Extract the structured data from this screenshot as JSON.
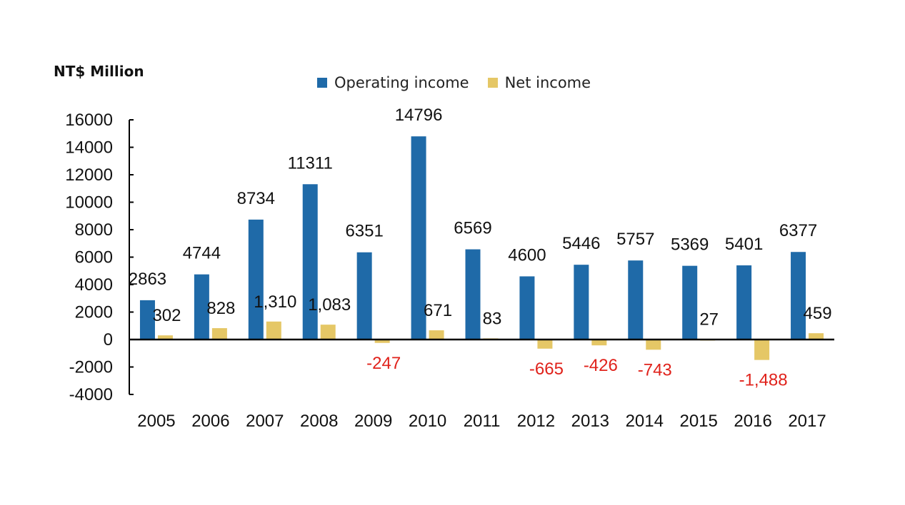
{
  "unit_label": "NT$ Million",
  "colors": {
    "operating": "#1f6aa8",
    "net": "#e5c766",
    "negative_label": "#e0221b",
    "text": "#111111"
  },
  "chart_data": {
    "type": "bar",
    "categories": [
      "2005",
      "2006",
      "2007",
      "2008",
      "2009",
      "2010",
      "2011",
      "2012",
      "2013",
      "2014",
      "2015",
      "2016",
      "2017"
    ],
    "series": [
      {
        "name": "Operating income",
        "values": [
          2863,
          4744,
          8734,
          11311,
          6351,
          14796,
          6569,
          4600,
          5446,
          5757,
          5369,
          5401,
          6377
        ],
        "labels": [
          "2863",
          "4744",
          "8734",
          "11311",
          "6351",
          "14796",
          "6569",
          "4600",
          "5446",
          "5757",
          "5369",
          "5401",
          "6377"
        ]
      },
      {
        "name": "Net income",
        "values": [
          302,
          828,
          1310,
          1083,
          -247,
          671,
          83,
          -665,
          -426,
          -743,
          27,
          -1488,
          459
        ],
        "labels": [
          "302",
          "828",
          "1,310",
          "1,083",
          "-247",
          "671",
          "83",
          "-665",
          "-426",
          "-743",
          "27",
          "-1,488",
          "459"
        ]
      }
    ],
    "ylim": [
      -4000,
      16000
    ],
    "yticks": [
      "16000",
      "14000",
      "12000",
      "10000",
      "8000",
      "6000",
      "4000",
      "2000",
      "0",
      "-2000",
      "-4000"
    ],
    "ytick_values": [
      16000,
      14000,
      12000,
      10000,
      8000,
      6000,
      4000,
      2000,
      0,
      -2000,
      -4000
    ],
    "legend_position": "top-center",
    "grid": false
  }
}
